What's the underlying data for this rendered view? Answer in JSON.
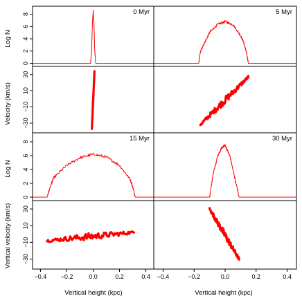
{
  "chart_data": {
    "type": "line",
    "x_axis": {
      "label": "Vertical height (kpc)",
      "ticks": [
        -0.4,
        -0.2,
        0.0,
        0.2,
        0.4
      ],
      "tick_labels": [
        "−0.4",
        "−0.2",
        "0.0",
        "0.2",
        "0.4"
      ],
      "range": [
        -0.46,
        0.46
      ]
    },
    "y_axes": {
      "logn": {
        "ticks": [
          0,
          2,
          4,
          6,
          8
        ],
        "range": [
          -0.5,
          9.3
        ]
      },
      "velocity": {
        "ticks": [
          -30,
          -10,
          10,
          30
        ],
        "tick_labels": [
          "−30",
          "−10",
          "10",
          "30"
        ],
        "range": [
          -42,
          40
        ]
      }
    },
    "row_labels": {
      "top_logn": "Log N",
      "top_velocity": "Velocity (km/s)",
      "bottom_logn": "Log N",
      "bottom_velocity": "Vertical velocity (km/s)"
    },
    "line_color": "#ff0000",
    "grid": false,
    "panels": [
      {
        "label": "0 Myr",
        "distribution": {
          "x": [
            -0.46,
            -0.02,
            -0.012,
            -0.006,
            0.0,
            0.006,
            0.012,
            0.02,
            0.46
          ],
          "y": [
            0.0,
            0.0,
            2.0,
            6.5,
            8.6,
            6.5,
            2.0,
            0.0,
            0.0
          ]
        },
        "velocity": {
          "x_range": [
            -0.01,
            0.01
          ],
          "v_at_start": -37,
          "v_at_end": 34
        }
      },
      {
        "label": "5 Myr",
        "distribution": {
          "x": [
            -0.46,
            -0.17,
            -0.16,
            -0.14,
            -0.1,
            -0.05,
            0.0,
            0.05,
            0.1,
            0.12,
            0.14,
            0.15,
            0.46
          ],
          "y": [
            0.0,
            0.0,
            1.8,
            3.0,
            5.0,
            6.3,
            6.8,
            6.3,
            4.5,
            3.4,
            1.5,
            0.0,
            0.0
          ]
        },
        "velocity": {
          "x_range": [
            -0.16,
            0.15
          ],
          "v_at_start": -32,
          "v_at_end": 27
        }
      },
      {
        "label": "15 Myr",
        "distribution": {
          "x": [
            -0.46,
            -0.35,
            -0.32,
            -0.3,
            -0.2,
            -0.1,
            0.0,
            0.1,
            0.2,
            0.28,
            0.3,
            0.32,
            0.46
          ],
          "y": [
            0.0,
            0.0,
            1.8,
            2.8,
            4.6,
            5.7,
            6.2,
            5.8,
            4.6,
            2.6,
            1.5,
            0.0,
            0.0
          ]
        },
        "velocity": {
          "x_range": [
            -0.35,
            0.31
          ],
          "v_at_start": -8,
          "v_at_end": 2
        }
      },
      {
        "label": "30 Myr",
        "distribution": {
          "x": [
            -0.46,
            -0.1,
            -0.08,
            -0.05,
            -0.02,
            0.0,
            0.03,
            0.06,
            0.09,
            0.46
          ],
          "y": [
            0.0,
            0.0,
            3.0,
            5.8,
            7.2,
            7.5,
            6.0,
            3.0,
            0.0,
            0.0
          ]
        },
        "velocity": {
          "x_range": [
            -0.1,
            0.09
          ],
          "v_at_start": 30,
          "v_at_end": -30
        }
      }
    ]
  }
}
